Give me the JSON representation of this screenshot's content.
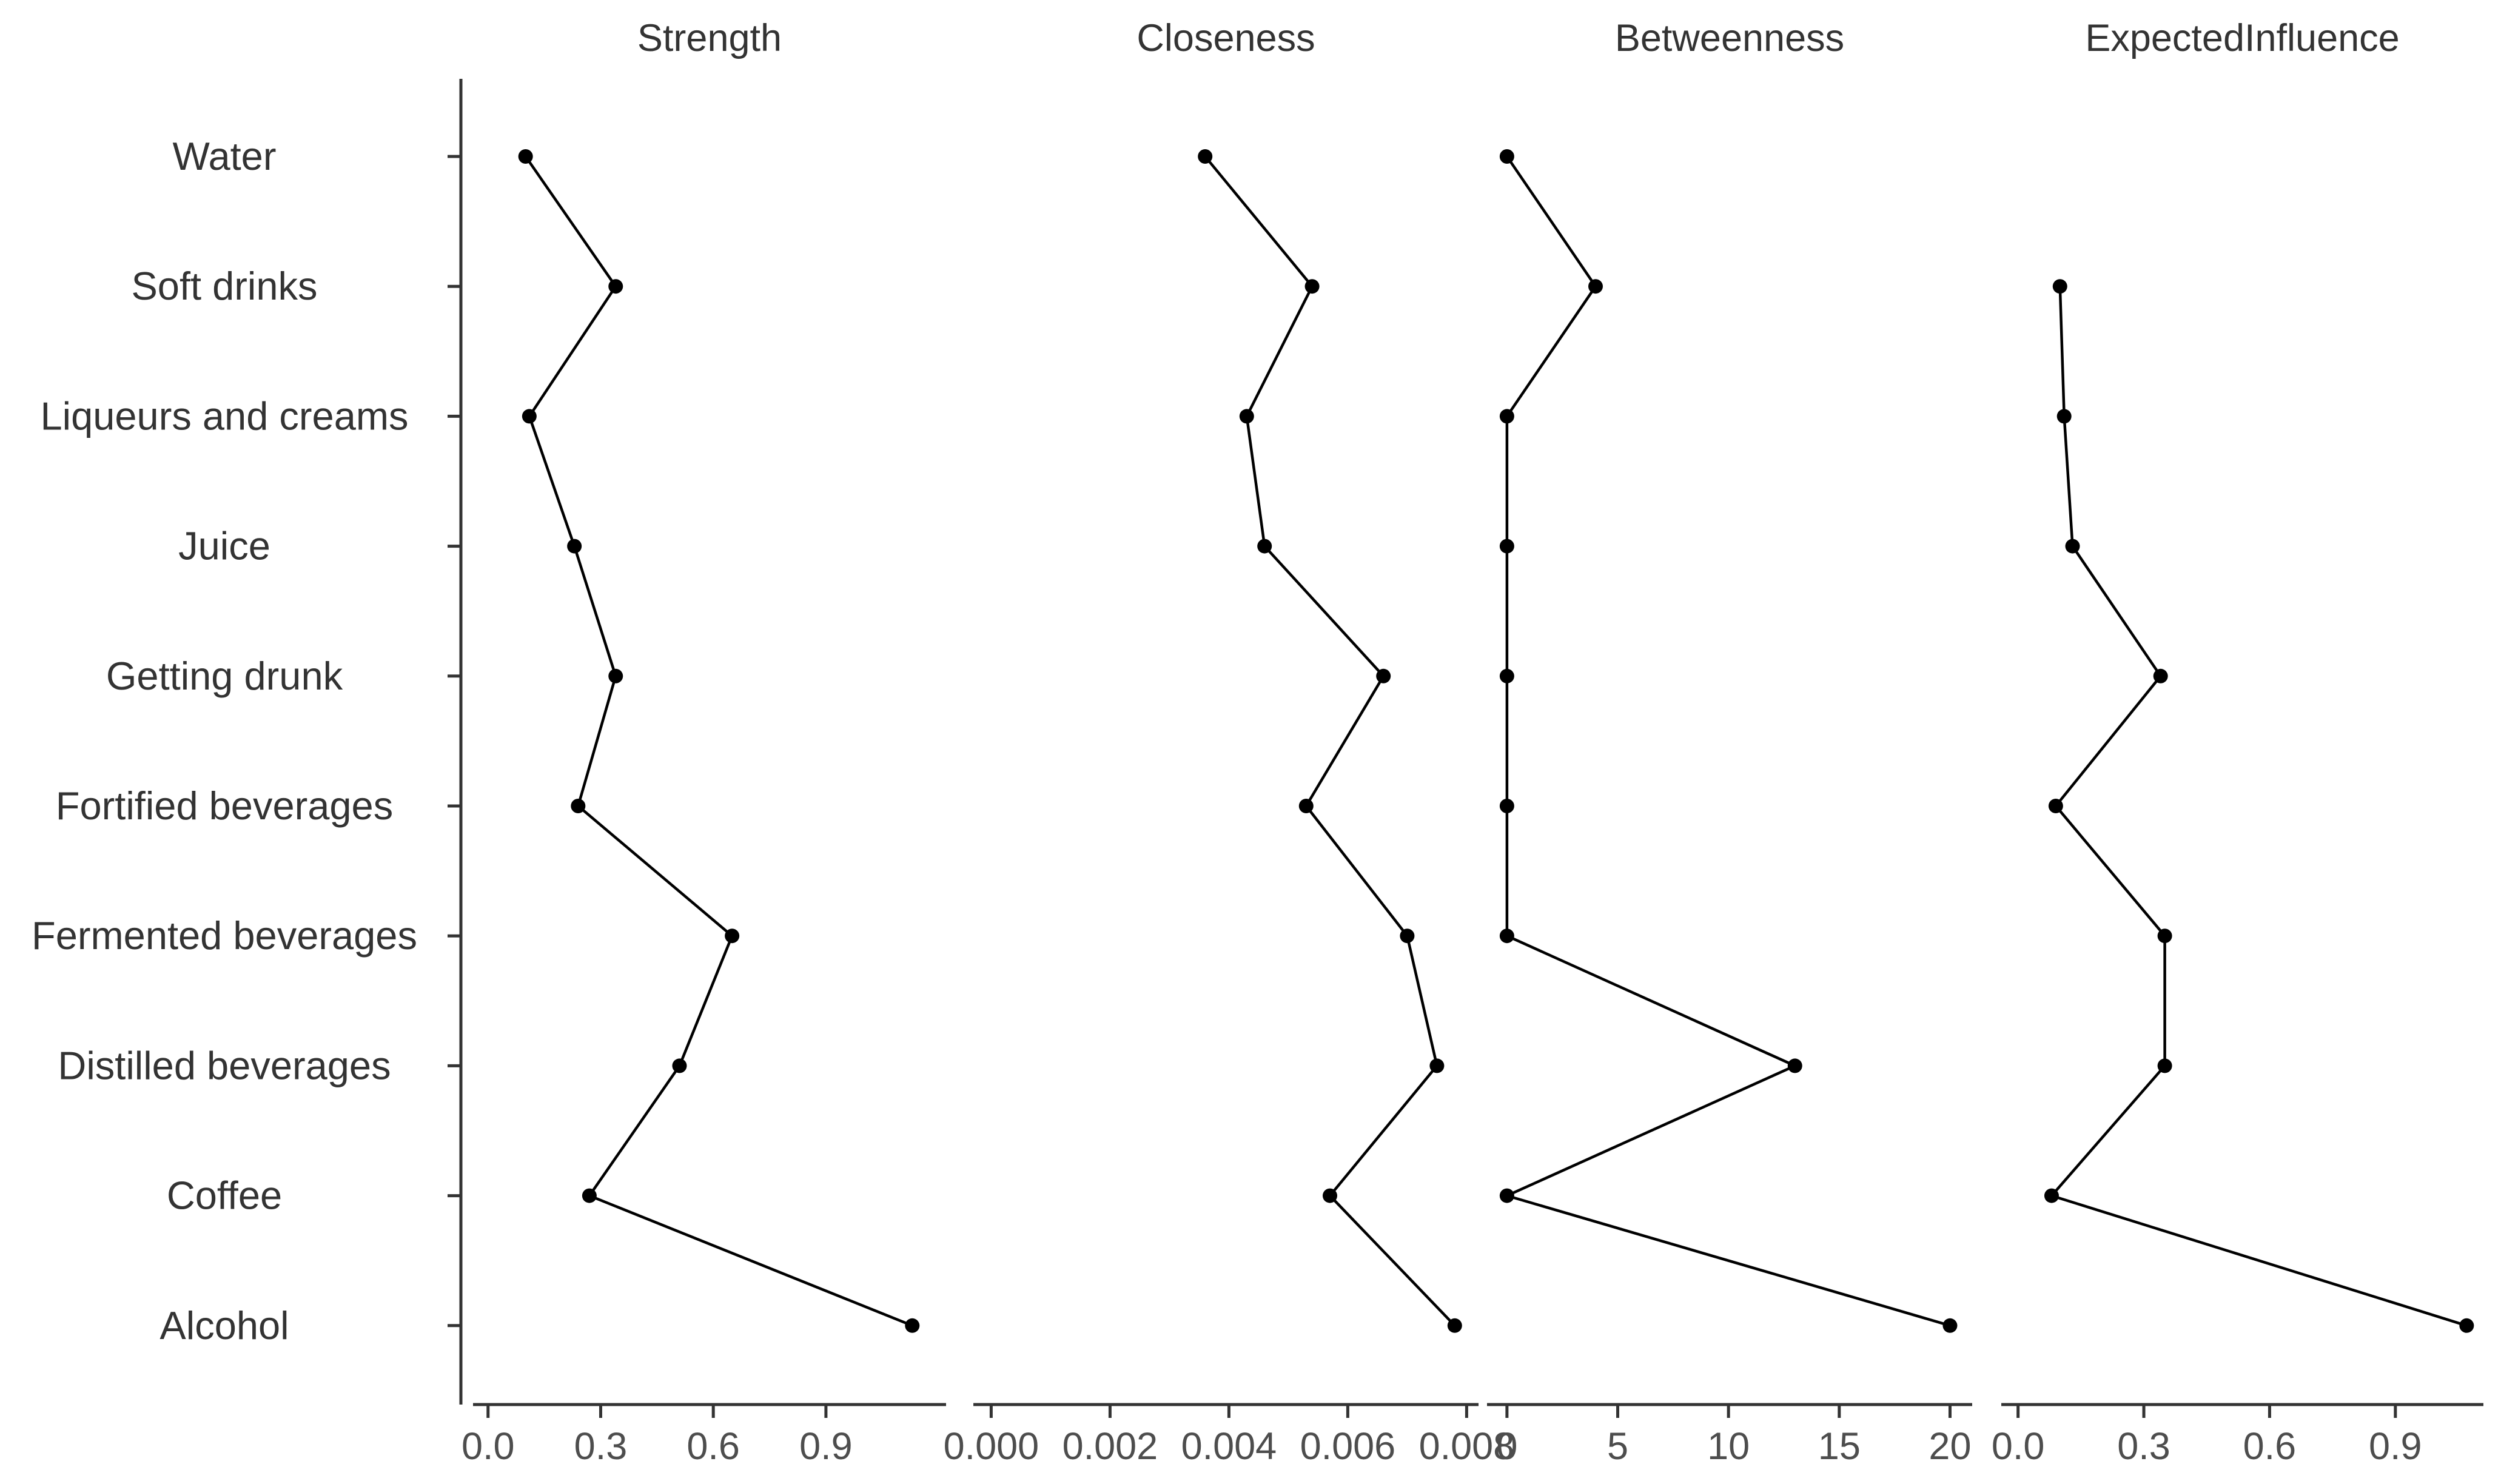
{
  "chart_data": {
    "type": "line",
    "categories": [
      "Water",
      "Soft drinks",
      "Liqueurs and creams",
      "Juice",
      "Getting drunk",
      "Fortified beverages",
      "Fermented beverages",
      "Distilled beverages",
      "Coffee",
      "Alcohol"
    ],
    "panels": [
      {
        "title": "Strength",
        "xlim": [
          -0.04,
          1.22
        ],
        "ticks": [
          0.0,
          0.3,
          0.6,
          0.9
        ],
        "tick_labels": [
          "0.0",
          "0.3",
          "0.6",
          "0.9"
        ],
        "values": [
          0.1,
          0.34,
          0.11,
          0.23,
          0.34,
          0.24,
          0.65,
          0.51,
          0.27,
          1.13
        ]
      },
      {
        "title": "Closeness",
        "xlim": [
          -0.0003,
          0.0082
        ],
        "ticks": [
          0.0,
          0.002,
          0.004,
          0.006,
          0.008
        ],
        "tick_labels": [
          "0.000",
          "0.002",
          "0.004",
          "0.006",
          "0.008"
        ],
        "values": [
          0.0036,
          0.0054,
          0.0043,
          0.0046,
          0.0066,
          0.0053,
          0.007,
          0.0075,
          0.0057,
          0.0078
        ]
      },
      {
        "title": "Betweenness",
        "xlim": [
          -0.9,
          21.0
        ],
        "ticks": [
          0,
          5,
          10,
          15,
          20
        ],
        "tick_labels": [
          "0",
          "5",
          "10",
          "15",
          "20"
        ],
        "values": [
          0,
          4,
          0,
          0,
          0,
          0,
          0,
          13,
          0,
          20
        ]
      },
      {
        "title": "ExpectedInfluence",
        "xlim": [
          -0.04,
          1.11
        ],
        "ticks": [
          0.0,
          0.3,
          0.6,
          0.9
        ],
        "tick_labels": [
          "0.0",
          "0.3",
          "0.6",
          "0.9"
        ],
        "values": [
          null,
          0.1,
          0.11,
          0.13,
          0.34,
          0.09,
          0.35,
          0.35,
          0.08,
          1.07
        ]
      }
    ],
    "grid": false,
    "legend": "none"
  }
}
